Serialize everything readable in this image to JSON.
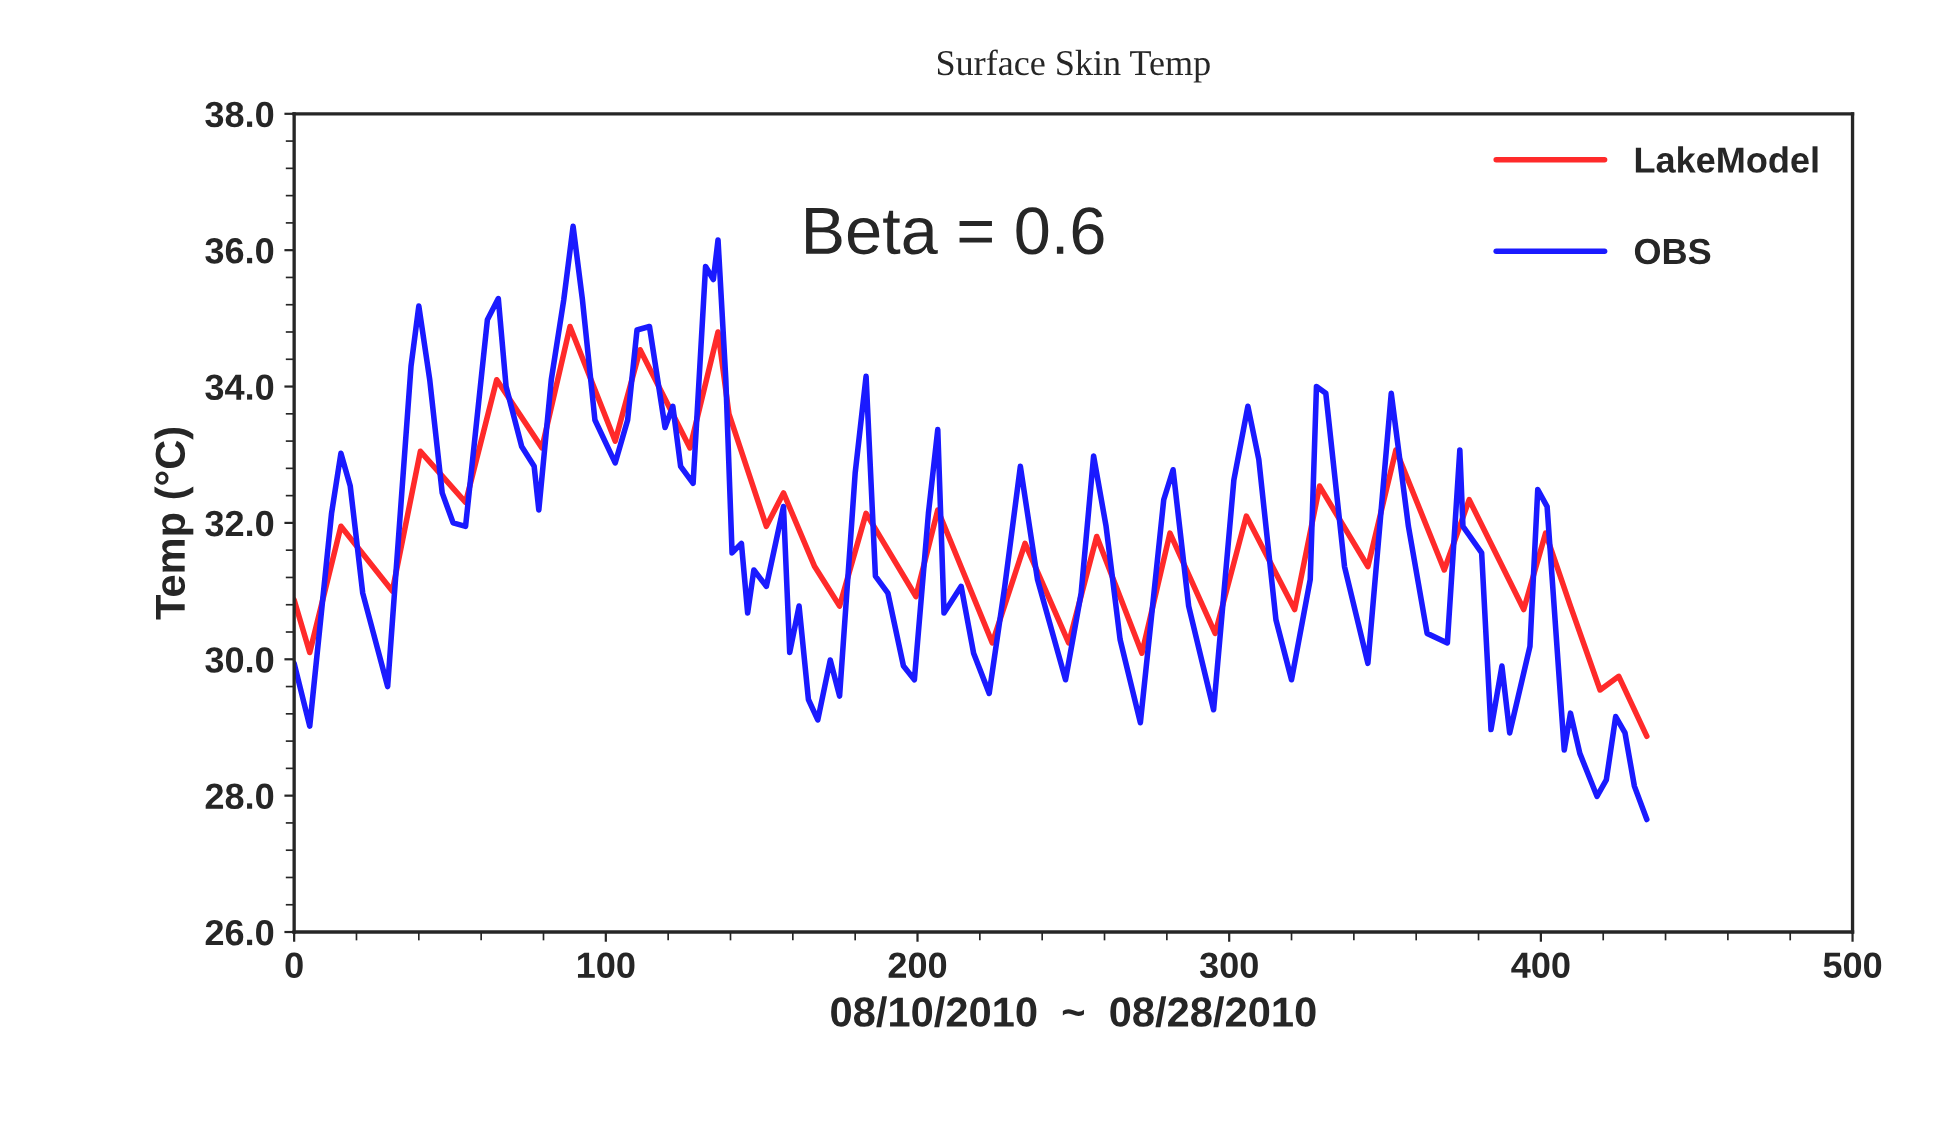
{
  "chart_data": {
    "type": "line",
    "title": "Surface Skin Temp",
    "xlabel": "08/10/2010  ~  08/28/2010",
    "ylabel": "Temp (°C)",
    "annotations": [
      "Beta = 0.6"
    ],
    "xlim": [
      0,
      500
    ],
    "xticks": [
      0,
      100,
      200,
      300,
      400,
      500
    ],
    "ylim": [
      26,
      38
    ],
    "yticks": [
      {
        "value": 26,
        "label": "26.0"
      },
      {
        "value": 28,
        "label": "28.0"
      },
      {
        "value": 30,
        "label": "30.0"
      },
      {
        "value": 32,
        "label": "32.0"
      },
      {
        "value": 34,
        "label": "34.0"
      },
      {
        "value": 36,
        "label": "36.0"
      },
      {
        "value": 38,
        "label": "38.0"
      }
    ],
    "grid": false,
    "legend": "top right",
    "marker": "none",
    "line_style": "solid",
    "series": [
      {
        "name": "LakeModel",
        "color": "#ff2a2a",
        "x": [
          0,
          5,
          15,
          31.5,
          40.5,
          55,
          65,
          79.5,
          88.5,
          103,
          111,
          127,
          136,
          139.5,
          151.5,
          157,
          167,
          175,
          183.5,
          199.5,
          206.5,
          224,
          234.5,
          248.5,
          257.5,
          272,
          281,
          295.5,
          305.5,
          321,
          329,
          344.5,
          353.5,
          369,
          377,
          394.5,
          401.5,
          409.5,
          419,
          425,
          434
        ],
        "values": [
          30.87,
          30.1,
          31.95,
          31.0,
          33.05,
          32.3,
          34.1,
          33.1,
          34.88,
          33.2,
          34.54,
          33.1,
          34.8,
          33.6,
          31.95,
          32.44,
          31.36,
          30.78,
          32.14,
          30.92,
          32.19,
          30.24,
          31.7,
          30.24,
          31.8,
          30.09,
          31.85,
          30.38,
          32.1,
          30.73,
          32.54,
          31.36,
          33.07,
          31.31,
          32.34,
          30.73,
          31.85,
          30.78,
          29.55,
          29.75,
          28.87
        ]
      },
      {
        "name": "OBS",
        "color": "#1a1aff",
        "x": [
          0,
          5,
          12,
          15,
          18,
          22,
          30,
          37.5,
          40,
          43.5,
          47.5,
          51,
          55,
          62,
          65.5,
          68,
          73,
          77,
          78.5,
          82.5,
          86.5,
          89.5,
          92.5,
          96.5,
          103,
          107,
          110,
          114,
          119,
          121.5,
          124,
          128,
          132,
          134.5,
          136,
          138.5,
          140.5,
          143.5,
          145.5,
          147.5,
          151.5,
          157,
          159,
          162,
          165,
          168,
          172,
          175,
          180,
          183.5,
          186.5,
          190.5,
          195.5,
          199,
          203.5,
          206.5,
          208.5,
          214,
          218,
          223,
          228,
          233,
          238.5,
          247.5,
          252.5,
          256.5,
          260.5,
          265,
          271.5,
          279,
          282,
          287,
          295,
          301.5,
          306,
          309.5,
          315,
          320,
          326,
          328,
          331,
          337,
          344.5,
          352,
          357.5,
          363.5,
          370,
          374,
          375,
          381,
          384,
          387.5,
          390,
          396.5,
          399,
          402,
          407.5,
          409.5,
          412.5,
          418,
          421,
          424,
          427,
          430,
          434
        ],
        "values": [
          29.94,
          29.02,
          32.14,
          33.02,
          32.54,
          30.97,
          29.6,
          34.3,
          35.18,
          34.1,
          32.44,
          32.0,
          31.95,
          34.98,
          35.29,
          34.0,
          33.12,
          32.83,
          32.19,
          34.1,
          35.27,
          36.35,
          35.27,
          33.51,
          32.88,
          33.51,
          34.83,
          34.88,
          33.4,
          33.71,
          32.83,
          32.58,
          35.76,
          35.57,
          36.15,
          34.1,
          31.56,
          31.7,
          30.68,
          31.31,
          31.07,
          32.24,
          30.1,
          30.78,
          29.41,
          29.11,
          29.99,
          29.46,
          32.73,
          34.15,
          31.22,
          30.97,
          29.9,
          29.7,
          32.14,
          33.37,
          30.68,
          31.07,
          30.09,
          29.5,
          31.07,
          32.83,
          31.17,
          29.7,
          30.97,
          32.98,
          31.95,
          30.29,
          29.07,
          32.34,
          32.78,
          30.78,
          29.26,
          32.63,
          33.71,
          32.93,
          30.58,
          29.7,
          31.17,
          34.0,
          33.9,
          31.36,
          29.94,
          33.9,
          31.95,
          30.38,
          30.24,
          33.07,
          31.95,
          31.56,
          28.97,
          29.9,
          28.92,
          30.19,
          32.49,
          32.24,
          28.67,
          29.21,
          28.62,
          27.99,
          28.23,
          29.16,
          28.92,
          28.14,
          27.65
        ]
      }
    ]
  }
}
